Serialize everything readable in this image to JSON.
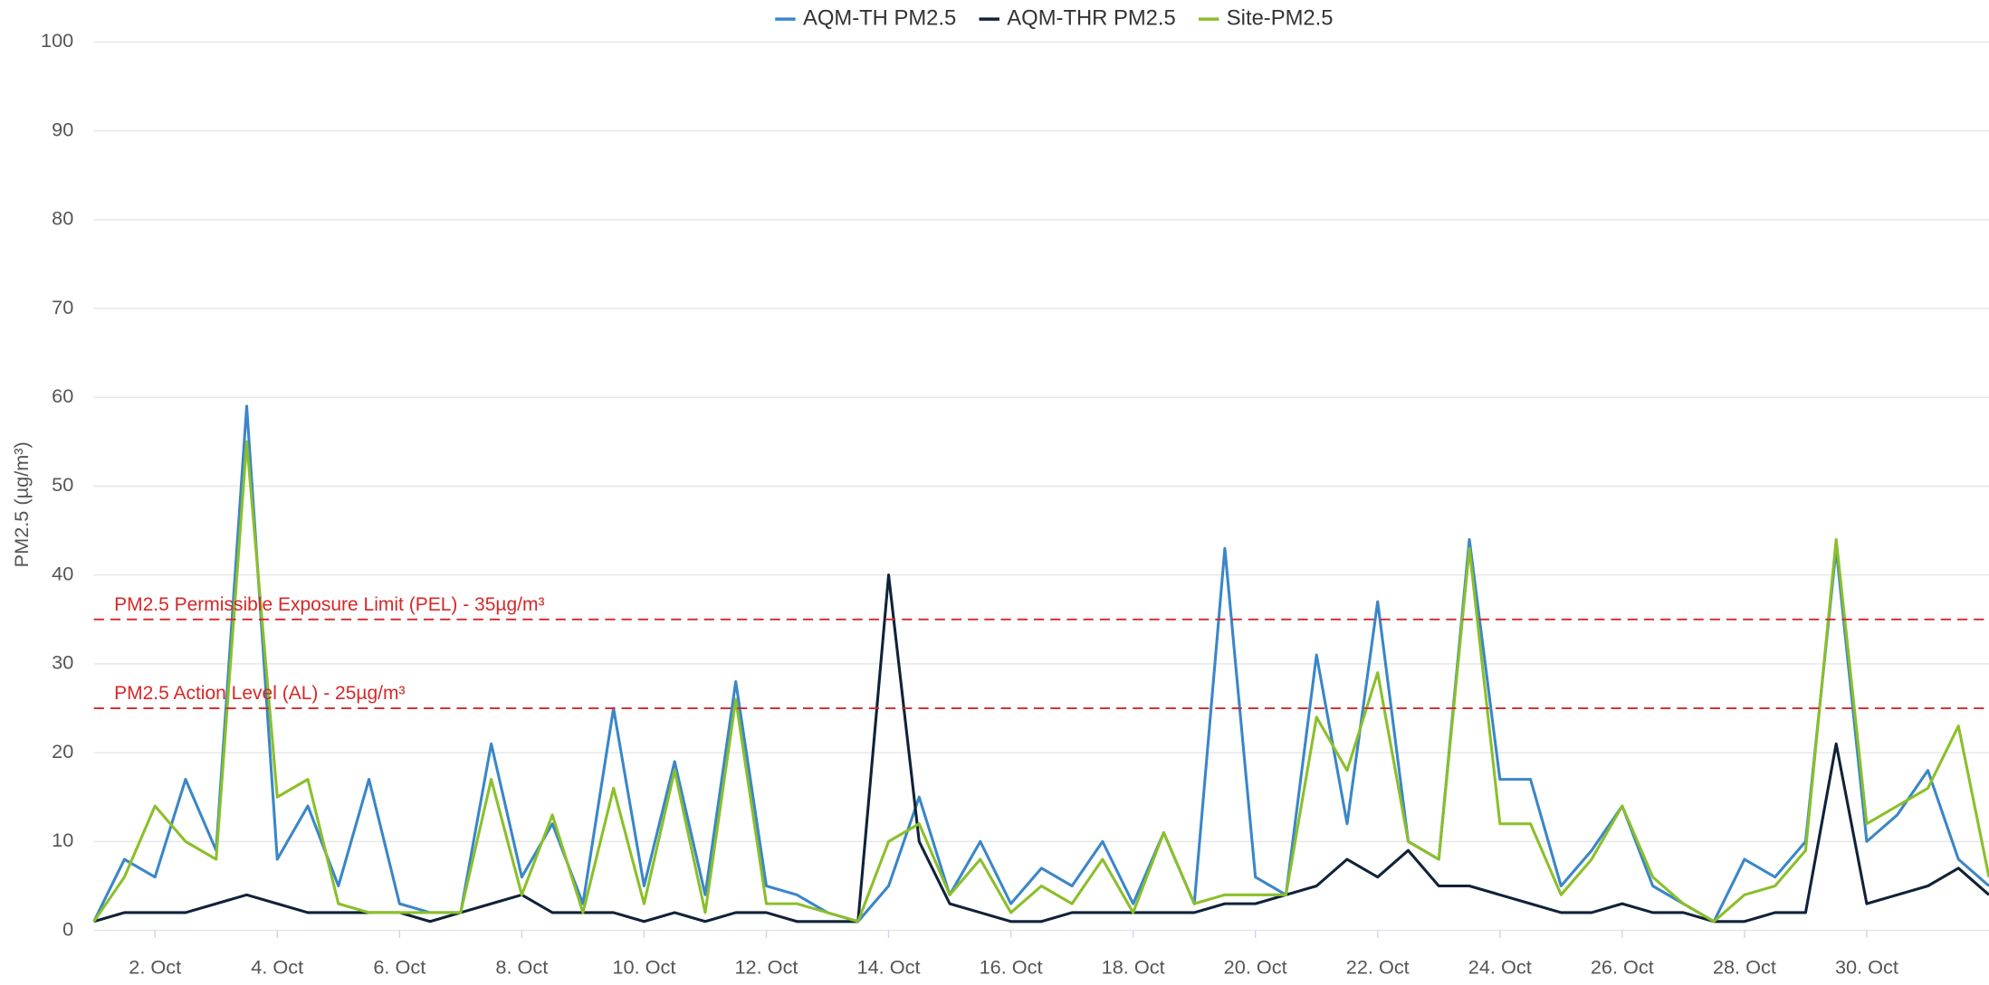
{
  "chart_data": {
    "type": "line",
    "y_axis_title": "PM2.5 (µg/m³)",
    "x": [
      1,
      1.5,
      2,
      2.5,
      3,
      3.5,
      4,
      4.5,
      5,
      5.5,
      6,
      6.5,
      7,
      7.5,
      8,
      8.5,
      9,
      9.5,
      10,
      10.5,
      11,
      11.5,
      12,
      12.5,
      13,
      13.5,
      14,
      14.5,
      15,
      15.5,
      16,
      16.5,
      17,
      17.5,
      18,
      18.5,
      19,
      19.5,
      20,
      20.5,
      21,
      21.5,
      22,
      22.5,
      23,
      23.5,
      24,
      24.5,
      25,
      25.5,
      26,
      26.5,
      27,
      27.5,
      28,
      28.5,
      29,
      29.5,
      30,
      30.5,
      31,
      31.5,
      32
    ],
    "series": [
      {
        "name": "AQM-TH PM2.5",
        "color": "#3a86c8",
        "values": [
          1,
          8,
          6,
          17,
          9,
          59,
          8,
          14,
          5,
          17,
          3,
          2,
          2,
          21,
          6,
          12,
          3,
          25,
          5,
          19,
          4,
          28,
          5,
          4,
          2,
          1,
          5,
          15,
          4,
          10,
          3,
          7,
          5,
          10,
          3,
          11,
          3,
          43,
          6,
          4,
          31,
          12,
          37,
          10,
          8,
          44,
          17,
          17,
          5,
          9,
          14,
          5,
          3,
          1,
          8,
          6,
          10,
          43,
          10,
          13,
          18,
          8,
          5
        ]
      },
      {
        "name": "AQM-THR PM2.5",
        "color": "#0f2238",
        "values": [
          1,
          2,
          2,
          2,
          3,
          4,
          3,
          2,
          2,
          2,
          2,
          1,
          2,
          3,
          4,
          2,
          2,
          2,
          1,
          2,
          1,
          2,
          2,
          1,
          1,
          1,
          40,
          10,
          3,
          2,
          1,
          1,
          2,
          2,
          2,
          2,
          2,
          3,
          3,
          4,
          5,
          8,
          6,
          9,
          5,
          5,
          4,
          3,
          2,
          2,
          3,
          2,
          2,
          1,
          1,
          2,
          2,
          21,
          3,
          4,
          5,
          7,
          4
        ]
      },
      {
        "name": "Site-PM2.5",
        "color": "#8bbf2a",
        "values": [
          1,
          6,
          14,
          10,
          8,
          55,
          15,
          17,
          3,
          2,
          2,
          2,
          2,
          17,
          4,
          13,
          2,
          16,
          3,
          18,
          2,
          26,
          3,
          3,
          2,
          1,
          10,
          12,
          4,
          8,
          2,
          5,
          3,
          8,
          2,
          11,
          3,
          4,
          4,
          4,
          24,
          18,
          29,
          10,
          8,
          43,
          12,
          12,
          4,
          8,
          14,
          6,
          3,
          1,
          4,
          5,
          9,
          44,
          12,
          14,
          16,
          23,
          6
        ]
      }
    ],
    "xlim": [
      1,
      32
    ],
    "xticks": [
      {
        "value": 2,
        "label": "2. Oct"
      },
      {
        "value": 4,
        "label": "4. Oct"
      },
      {
        "value": 6,
        "label": "6. Oct"
      },
      {
        "value": 8,
        "label": "8. Oct"
      },
      {
        "value": 10,
        "label": "10. Oct"
      },
      {
        "value": 12,
        "label": "12. Oct"
      },
      {
        "value": 14,
        "label": "14. Oct"
      },
      {
        "value": 16,
        "label": "16. Oct"
      },
      {
        "value": 18,
        "label": "18. Oct"
      },
      {
        "value": 20,
        "label": "20. Oct"
      },
      {
        "value": 22,
        "label": "22. Oct"
      },
      {
        "value": 24,
        "label": "24. Oct"
      },
      {
        "value": 26,
        "label": "26. Oct"
      },
      {
        "value": 28,
        "label": "28. Oct"
      },
      {
        "value": 30,
        "label": "30. Oct"
      }
    ],
    "ylim": [
      0,
      100
    ],
    "yticks": [
      0,
      10,
      20,
      30,
      40,
      50,
      60,
      70,
      80,
      90,
      100
    ],
    "grid": true,
    "legend": "top",
    "plot_lines": [
      {
        "value": 35,
        "label": "PM2.5 Permissible Exposure Limit (PEL) - 35µg/m³",
        "color": "#d62728"
      },
      {
        "value": 25,
        "label": "PM2.5 Action Level (AL) - 25µg/m³",
        "color": "#d62728"
      }
    ]
  }
}
